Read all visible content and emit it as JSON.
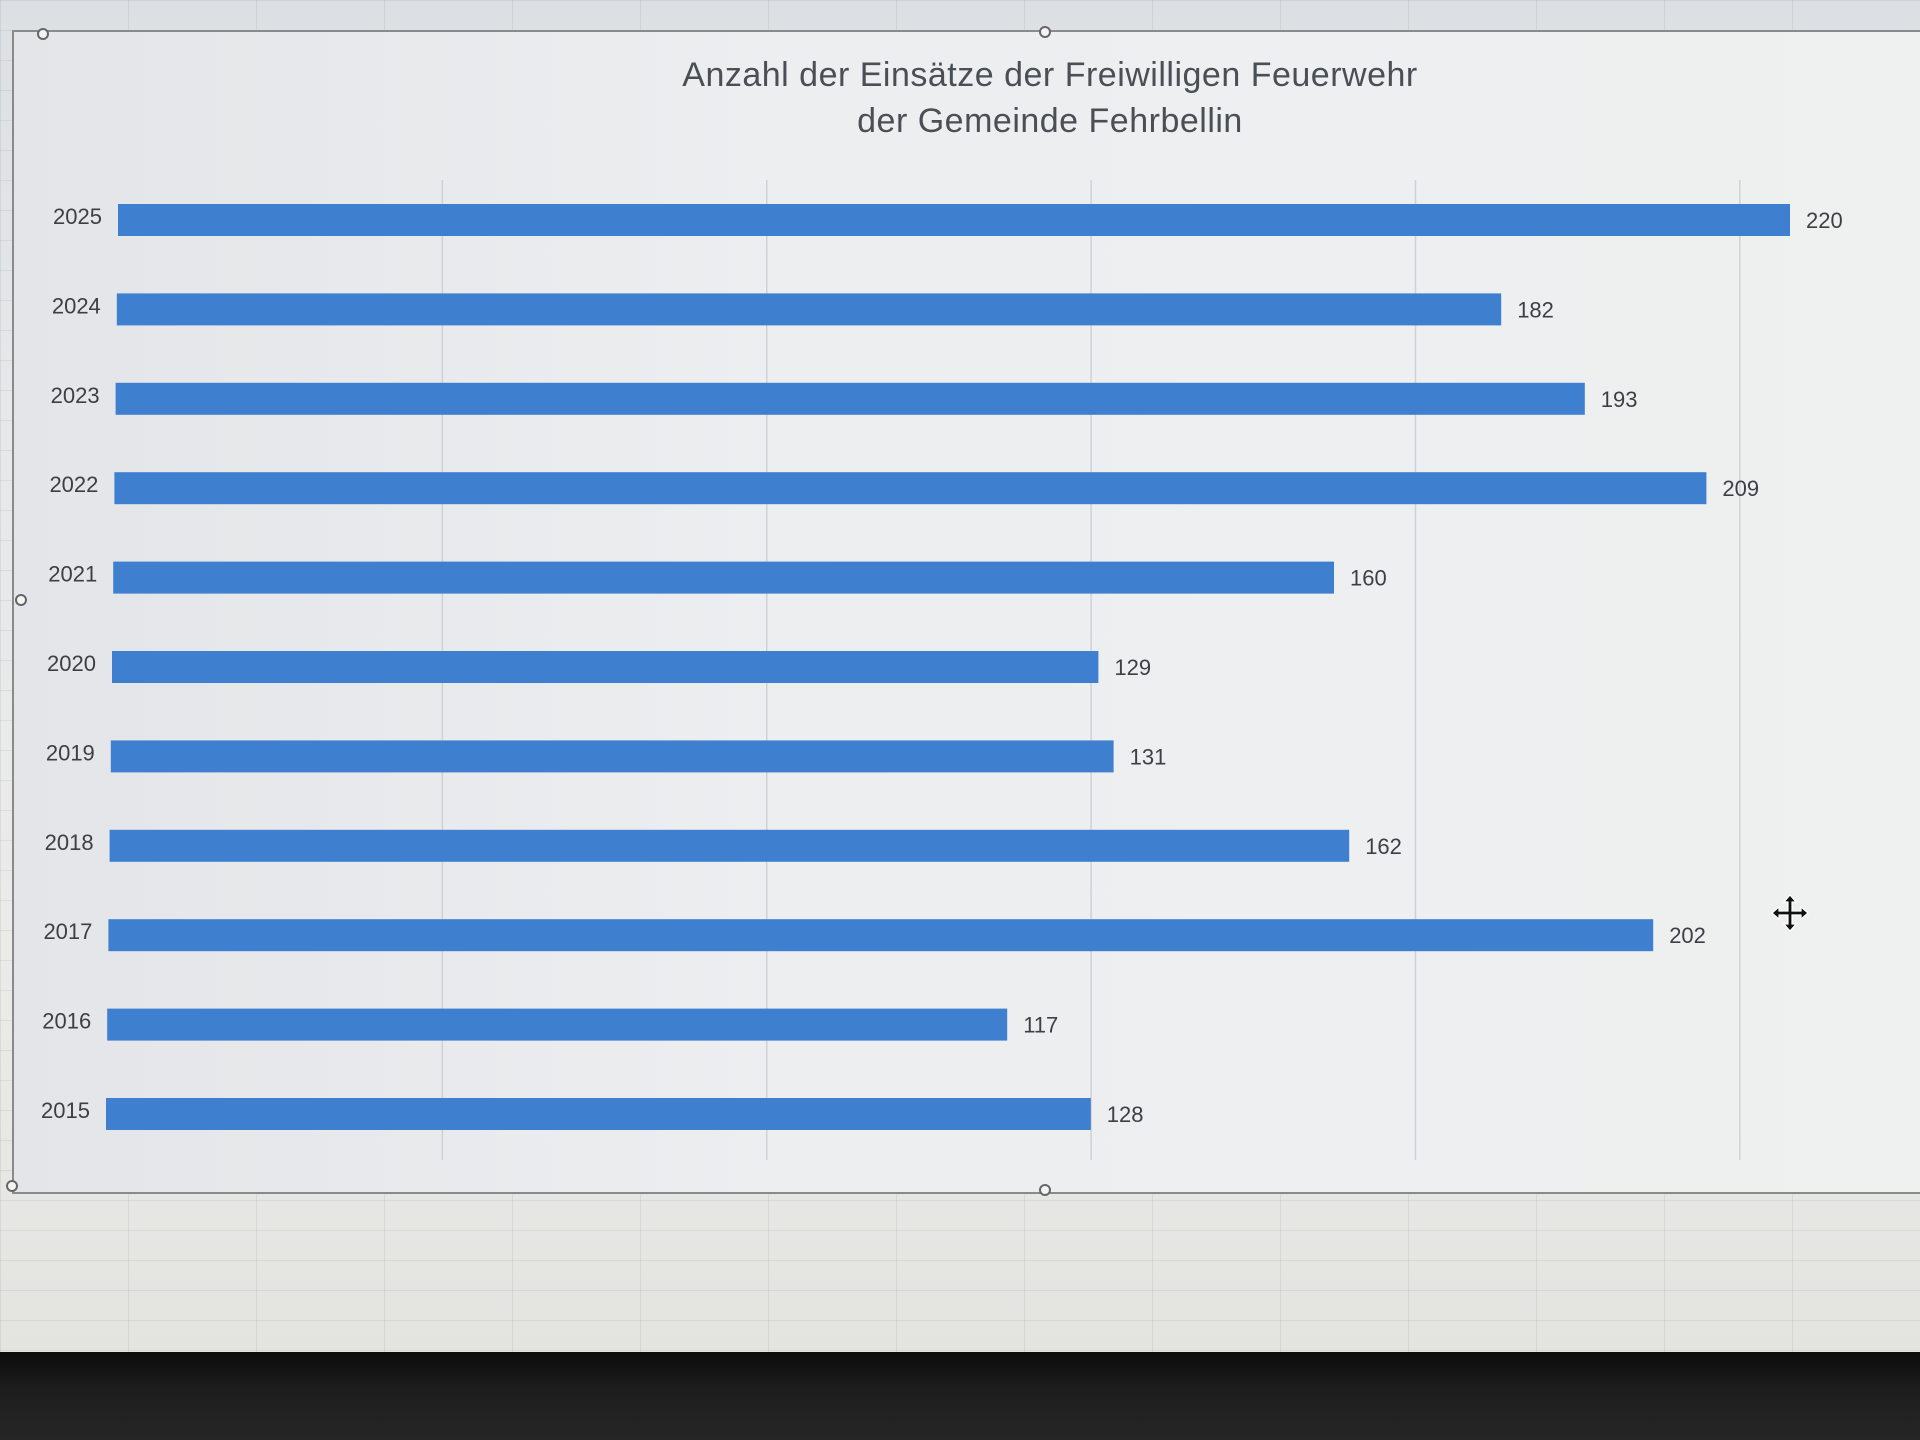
{
  "chart_data": {
    "type": "bar",
    "orientation": "horizontal",
    "title": "Anzahl der Einsätze der Freiwilligen Feuerwehr der Gemeinde Fehrbellin",
    "title_lines": [
      "Anzahl der Einsätze der Freiwilligen Feuerwehr",
      "der Gemeinde Fehrbellin"
    ],
    "categories": [
      "2025",
      "2024",
      "2023",
      "2022",
      "2021",
      "2020",
      "2019",
      "2018",
      "2017",
      "2016",
      "2015"
    ],
    "values": [
      220,
      182,
      193,
      209,
      160,
      129,
      131,
      162,
      202,
      117,
      128
    ],
    "xlim": [
      0,
      220
    ],
    "grid": true,
    "data_labels": true,
    "legend": "none",
    "bar_color": "#3f7fd0"
  },
  "icons": {
    "move_cursor": "move-cursor-icon"
  }
}
